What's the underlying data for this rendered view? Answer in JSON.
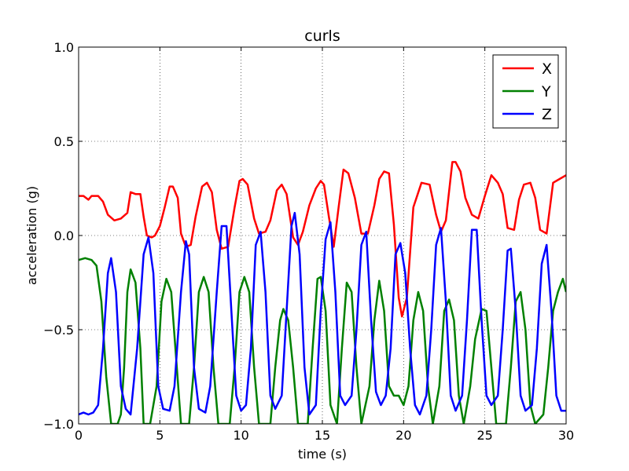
{
  "chart_data": {
    "type": "line",
    "title": "curls",
    "xlabel": "time (s)",
    "ylabel": "acceleration (g)",
    "xlim": [
      0,
      30
    ],
    "ylim": [
      -1.0,
      1.0
    ],
    "xticks": [
      0,
      5,
      10,
      15,
      20,
      25,
      30
    ],
    "xtick_labels": [
      "0",
      "5",
      "10",
      "15",
      "20",
      "25",
      "30"
    ],
    "yticks": [
      -1.0,
      -0.5,
      0.0,
      0.5,
      1.0
    ],
    "ytick_labels": [
      "−1.0",
      "−0.5",
      "0.0",
      "0.5",
      "1.0"
    ],
    "grid": true,
    "legend_position": "top-right",
    "series": [
      {
        "name": "X",
        "color": "#ff0000",
        "points": [
          [
            0,
            0.21
          ],
          [
            0.3,
            0.21
          ],
          [
            0.6,
            0.19
          ],
          [
            0.8,
            0.21
          ],
          [
            1.2,
            0.21
          ],
          [
            1.5,
            0.18
          ],
          [
            1.8,
            0.11
          ],
          [
            2.2,
            0.08
          ],
          [
            2.6,
            0.09
          ],
          [
            3,
            0.12
          ],
          [
            3.2,
            0.23
          ],
          [
            3.5,
            0.22
          ],
          [
            3.8,
            0.22
          ],
          [
            4.0,
            0.1
          ],
          [
            4.2,
            0.0
          ],
          [
            4.5,
            -0.01
          ],
          [
            4.7,
            0.0
          ],
          [
            5.0,
            0.05
          ],
          [
            5.3,
            0.15
          ],
          [
            5.6,
            0.26
          ],
          [
            5.8,
            0.26
          ],
          [
            6.1,
            0.2
          ],
          [
            6.3,
            0.01
          ],
          [
            6.6,
            -0.06
          ],
          [
            6.9,
            -0.05
          ],
          [
            7.2,
            0.1
          ],
          [
            7.6,
            0.26
          ],
          [
            7.9,
            0.28
          ],
          [
            8.2,
            0.23
          ],
          [
            8.5,
            0.03
          ],
          [
            8.8,
            -0.07
          ],
          [
            9.2,
            -0.06
          ],
          [
            9.6,
            0.15
          ],
          [
            9.9,
            0.29
          ],
          [
            10.1,
            0.3
          ],
          [
            10.4,
            0.27
          ],
          [
            10.8,
            0.09
          ],
          [
            11.1,
            0.01
          ],
          [
            11.5,
            0.02
          ],
          [
            11.8,
            0.08
          ],
          [
            12.2,
            0.24
          ],
          [
            12.5,
            0.27
          ],
          [
            12.8,
            0.22
          ],
          [
            13.2,
            -0.01
          ],
          [
            13.5,
            -0.05
          ],
          [
            13.8,
            0.02
          ],
          [
            14.2,
            0.16
          ],
          [
            14.6,
            0.25
          ],
          [
            14.9,
            0.29
          ],
          [
            15.1,
            0.27
          ],
          [
            15.4,
            0.1
          ],
          [
            15.7,
            -0.06
          ],
          [
            16.0,
            0.15
          ],
          [
            16.3,
            0.35
          ],
          [
            16.6,
            0.33
          ],
          [
            17.0,
            0.2
          ],
          [
            17.4,
            0.01
          ],
          [
            17.8,
            0.01
          ],
          [
            18.2,
            0.16
          ],
          [
            18.5,
            0.3
          ],
          [
            18.8,
            0.34
          ],
          [
            19.1,
            0.33
          ],
          [
            19.4,
            0.06
          ],
          [
            19.7,
            -0.33
          ],
          [
            19.9,
            -0.43
          ],
          [
            20.2,
            -0.33
          ],
          [
            20.6,
            0.15
          ],
          [
            21.1,
            0.28
          ],
          [
            21.6,
            0.27
          ],
          [
            22.0,
            0.11
          ],
          [
            22.3,
            0.02
          ],
          [
            22.6,
            0.08
          ],
          [
            23.0,
            0.39
          ],
          [
            23.2,
            0.39
          ],
          [
            23.5,
            0.34
          ],
          [
            23.8,
            0.2
          ],
          [
            24.2,
            0.11
          ],
          [
            24.6,
            0.09
          ],
          [
            25.0,
            0.21
          ],
          [
            25.4,
            0.32
          ],
          [
            25.8,
            0.28
          ],
          [
            26.1,
            0.22
          ],
          [
            26.4,
            0.04
          ],
          [
            26.8,
            0.03
          ],
          [
            27.1,
            0.19
          ],
          [
            27.4,
            0.27
          ],
          [
            27.8,
            0.28
          ],
          [
            28.1,
            0.2
          ],
          [
            28.4,
            0.03
          ],
          [
            28.8,
            0.01
          ],
          [
            29.2,
            0.28
          ],
          [
            29.6,
            0.3
          ],
          [
            30.0,
            0.32
          ]
        ]
      },
      {
        "name": "Y",
        "color": "#008000",
        "points": [
          [
            0,
            -0.13
          ],
          [
            0.4,
            -0.12
          ],
          [
            0.8,
            -0.13
          ],
          [
            1.1,
            -0.16
          ],
          [
            1.4,
            -0.35
          ],
          [
            1.7,
            -0.75
          ],
          [
            2.0,
            -1.0
          ],
          [
            2.4,
            -1.0
          ],
          [
            2.6,
            -0.95
          ],
          [
            2.8,
            -0.7
          ],
          [
            3.0,
            -0.3
          ],
          [
            3.2,
            -0.18
          ],
          [
            3.5,
            -0.25
          ],
          [
            3.8,
            -0.6
          ],
          [
            4.0,
            -1.0
          ],
          [
            4.4,
            -1.0
          ],
          [
            4.8,
            -0.8
          ],
          [
            5.1,
            -0.35
          ],
          [
            5.4,
            -0.23
          ],
          [
            5.7,
            -0.3
          ],
          [
            6.0,
            -0.65
          ],
          [
            6.3,
            -1.0
          ],
          [
            6.8,
            -1.0
          ],
          [
            7.1,
            -0.7
          ],
          [
            7.4,
            -0.3
          ],
          [
            7.7,
            -0.22
          ],
          [
            8.0,
            -0.3
          ],
          [
            8.3,
            -0.7
          ],
          [
            8.6,
            -1.0
          ],
          [
            9.3,
            -1.0
          ],
          [
            9.6,
            -0.7
          ],
          [
            9.9,
            -0.3
          ],
          [
            10.2,
            -0.22
          ],
          [
            10.5,
            -0.3
          ],
          [
            10.8,
            -0.7
          ],
          [
            11.1,
            -1.0
          ],
          [
            11.8,
            -1.0
          ],
          [
            12.1,
            -0.7
          ],
          [
            12.4,
            -0.45
          ],
          [
            12.6,
            -0.39
          ],
          [
            12.9,
            -0.45
          ],
          [
            13.2,
            -0.7
          ],
          [
            13.5,
            -1.0
          ],
          [
            14.1,
            -1.0
          ],
          [
            14.4,
            -0.6
          ],
          [
            14.7,
            -0.23
          ],
          [
            14.9,
            -0.22
          ],
          [
            15.2,
            -0.4
          ],
          [
            15.5,
            -0.9
          ],
          [
            15.9,
            -1.0
          ],
          [
            16.2,
            -0.6
          ],
          [
            16.5,
            -0.25
          ],
          [
            16.8,
            -0.3
          ],
          [
            17.1,
            -0.7
          ],
          [
            17.4,
            -1.0
          ],
          [
            17.9,
            -0.8
          ],
          [
            18.2,
            -0.45
          ],
          [
            18.5,
            -0.24
          ],
          [
            18.8,
            -0.4
          ],
          [
            19.1,
            -0.8
          ],
          [
            19.4,
            -0.85
          ],
          [
            19.7,
            -0.85
          ],
          [
            20.0,
            -0.9
          ],
          [
            20.3,
            -0.8
          ],
          [
            20.6,
            -0.45
          ],
          [
            20.9,
            -0.3
          ],
          [
            21.2,
            -0.4
          ],
          [
            21.5,
            -0.8
          ],
          [
            21.8,
            -1.0
          ],
          [
            22.2,
            -0.8
          ],
          [
            22.5,
            -0.4
          ],
          [
            22.8,
            -0.34
          ],
          [
            23.1,
            -0.45
          ],
          [
            23.4,
            -0.85
          ],
          [
            23.7,
            -1.0
          ],
          [
            24.1,
            -0.8
          ],
          [
            24.4,
            -0.55
          ],
          [
            24.8,
            -0.39
          ],
          [
            25.1,
            -0.4
          ],
          [
            25.4,
            -0.7
          ],
          [
            25.7,
            -1.0
          ],
          [
            26.3,
            -1.0
          ],
          [
            26.6,
            -0.7
          ],
          [
            26.9,
            -0.35
          ],
          [
            27.2,
            -0.3
          ],
          [
            27.5,
            -0.5
          ],
          [
            27.8,
            -0.9
          ],
          [
            28.1,
            -1.0
          ],
          [
            28.6,
            -0.95
          ],
          [
            28.9,
            -0.7
          ],
          [
            29.2,
            -0.4
          ],
          [
            29.5,
            -0.3
          ],
          [
            29.8,
            -0.23
          ],
          [
            30.0,
            -0.3
          ]
        ]
      },
      {
        "name": "Z",
        "color": "#0000ff",
        "points": [
          [
            0,
            -0.95
          ],
          [
            0.3,
            -0.94
          ],
          [
            0.6,
            -0.95
          ],
          [
            0.9,
            -0.94
          ],
          [
            1.2,
            -0.9
          ],
          [
            1.5,
            -0.6
          ],
          [
            1.8,
            -0.2
          ],
          [
            2.0,
            -0.12
          ],
          [
            2.3,
            -0.3
          ],
          [
            2.6,
            -0.8
          ],
          [
            2.9,
            -0.92
          ],
          [
            3.2,
            -0.95
          ],
          [
            3.6,
            -0.6
          ],
          [
            4.0,
            -0.1
          ],
          [
            4.3,
            -0.01
          ],
          [
            4.6,
            -0.2
          ],
          [
            4.9,
            -0.8
          ],
          [
            5.2,
            -0.92
          ],
          [
            5.6,
            -0.93
          ],
          [
            5.9,
            -0.8
          ],
          [
            6.3,
            -0.3
          ],
          [
            6.6,
            -0.03
          ],
          [
            6.8,
            -0.1
          ],
          [
            7.1,
            -0.7
          ],
          [
            7.4,
            -0.92
          ],
          [
            7.8,
            -0.94
          ],
          [
            8.1,
            -0.8
          ],
          [
            8.5,
            -0.3
          ],
          [
            8.8,
            0.05
          ],
          [
            9.1,
            0.05
          ],
          [
            9.4,
            -0.4
          ],
          [
            9.7,
            -0.85
          ],
          [
            10.0,
            -0.93
          ],
          [
            10.3,
            -0.9
          ],
          [
            10.6,
            -0.6
          ],
          [
            10.9,
            -0.05
          ],
          [
            11.2,
            0.02
          ],
          [
            11.5,
            -0.3
          ],
          [
            11.8,
            -0.85
          ],
          [
            12.1,
            -0.92
          ],
          [
            12.5,
            -0.85
          ],
          [
            12.8,
            -0.4
          ],
          [
            13.1,
            0.05
          ],
          [
            13.3,
            0.12
          ],
          [
            13.6,
            -0.1
          ],
          [
            13.9,
            -0.7
          ],
          [
            14.2,
            -0.95
          ],
          [
            14.6,
            -0.9
          ],
          [
            14.9,
            -0.4
          ],
          [
            15.2,
            -0.02
          ],
          [
            15.5,
            0.07
          ],
          [
            15.8,
            -0.3
          ],
          [
            16.1,
            -0.85
          ],
          [
            16.4,
            -0.9
          ],
          [
            16.8,
            -0.85
          ],
          [
            17.1,
            -0.5
          ],
          [
            17.4,
            -0.05
          ],
          [
            17.7,
            0.02
          ],
          [
            18.0,
            -0.45
          ],
          [
            18.3,
            -0.83
          ],
          [
            18.6,
            -0.9
          ],
          [
            18.9,
            -0.85
          ],
          [
            19.2,
            -0.6
          ],
          [
            19.5,
            -0.1
          ],
          [
            19.8,
            -0.04
          ],
          [
            20.1,
            -0.2
          ],
          [
            20.4,
            -0.6
          ],
          [
            20.7,
            -0.9
          ],
          [
            21.0,
            -0.95
          ],
          [
            21.4,
            -0.85
          ],
          [
            21.7,
            -0.5
          ],
          [
            22.0,
            -0.05
          ],
          [
            22.3,
            0.04
          ],
          [
            22.6,
            -0.35
          ],
          [
            22.9,
            -0.85
          ],
          [
            23.2,
            -0.93
          ],
          [
            23.6,
            -0.85
          ],
          [
            23.9,
            -0.45
          ],
          [
            24.2,
            0.03
          ],
          [
            24.5,
            0.03
          ],
          [
            24.8,
            -0.45
          ],
          [
            25.1,
            -0.85
          ],
          [
            25.4,
            -0.9
          ],
          [
            25.8,
            -0.85
          ],
          [
            26.1,
            -0.5
          ],
          [
            26.4,
            -0.08
          ],
          [
            26.6,
            -0.07
          ],
          [
            26.9,
            -0.4
          ],
          [
            27.2,
            -0.85
          ],
          [
            27.5,
            -0.93
          ],
          [
            27.9,
            -0.9
          ],
          [
            28.2,
            -0.6
          ],
          [
            28.5,
            -0.15
          ],
          [
            28.8,
            -0.05
          ],
          [
            29.1,
            -0.4
          ],
          [
            29.4,
            -0.85
          ],
          [
            29.7,
            -0.93
          ],
          [
            30.0,
            -0.93
          ]
        ]
      }
    ]
  }
}
